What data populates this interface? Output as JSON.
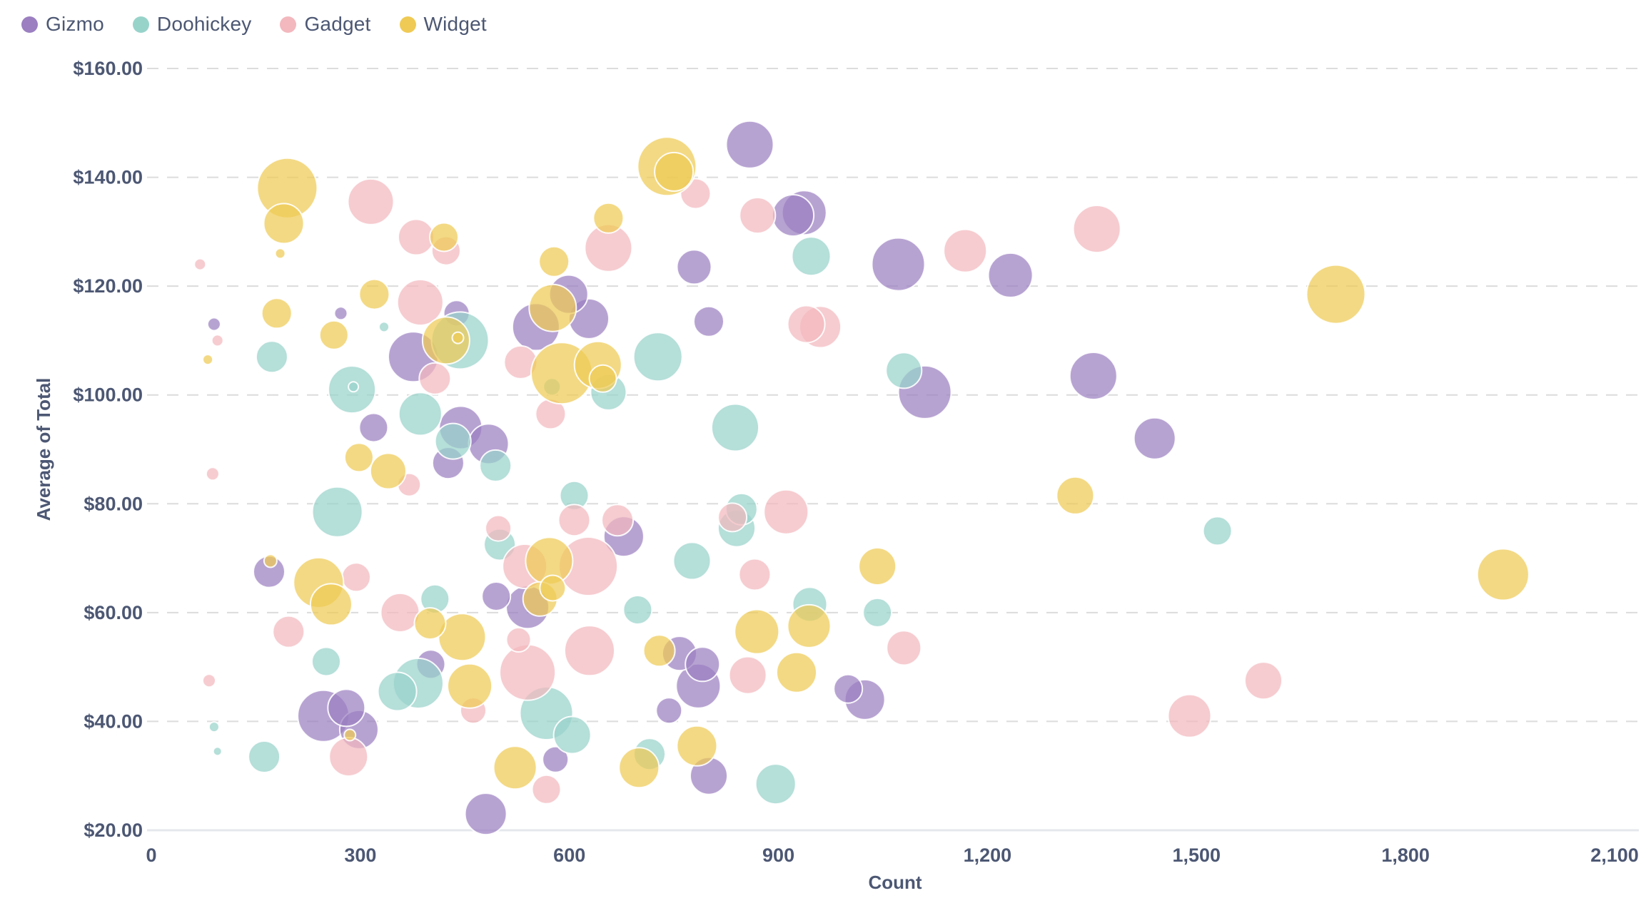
{
  "legend": {
    "items": [
      {
        "label": "Gizmo",
        "color": "#9b7fc1"
      },
      {
        "label": "Doohickey",
        "color": "#98d3ca"
      },
      {
        "label": "Gadget",
        "color": "#f2b8be"
      },
      {
        "label": "Widget",
        "color": "#efca54"
      }
    ]
  },
  "axes": {
    "x_title": "Count",
    "y_title": "Average of Total",
    "y_ticks": [
      {
        "label": "$160.00",
        "value": 160
      },
      {
        "label": "$140.00",
        "value": 140
      },
      {
        "label": "$120.00",
        "value": 120
      },
      {
        "label": "$100.00",
        "value": 100
      },
      {
        "label": "$80.00",
        "value": 80
      },
      {
        "label": "$60.00",
        "value": 60
      },
      {
        "label": "$40.00",
        "value": 40
      },
      {
        "label": "$20.00",
        "value": 20
      }
    ],
    "x_ticks": [
      {
        "label": "0",
        "value": 0
      },
      {
        "label": "300",
        "value": 300
      },
      {
        "label": "600",
        "value": 600
      },
      {
        "label": "900",
        "value": 900
      },
      {
        "label": "1,200",
        "value": 1200
      },
      {
        "label": "1,500",
        "value": 1500
      },
      {
        "label": "1,800",
        "value": 1800
      },
      {
        "label": "2,100",
        "value": 2100
      }
    ]
  },
  "colors": {
    "gridline": "#dcdcdc",
    "axis_line": "#e4e7ec",
    "text": "#4c5773",
    "background": "#ffffff"
  },
  "chart_data": {
    "type": "scatter",
    "xlabel": "Count",
    "ylabel": "Average of Total",
    "x_range": [
      0,
      2100
    ],
    "y_range": [
      20,
      160
    ],
    "grid": "horizontal-dashed",
    "legend_position": "top-left",
    "point_format": "[count, avg_total_dollars, bubble_radius_px]",
    "series": [
      {
        "name": "Gizmo",
        "color": "#9b7fc1",
        "points": [
          [
            90,
            113,
            9
          ],
          [
            272,
            115,
            9
          ],
          [
            376,
            107,
            35
          ],
          [
            438,
            115,
            18
          ],
          [
            319,
            94,
            20
          ],
          [
            444,
            94,
            30
          ],
          [
            426,
            87.5,
            22
          ],
          [
            484,
            91,
            28
          ],
          [
            169,
            67.5,
            22
          ],
          [
            247,
            41,
            36
          ],
          [
            280,
            42.5,
            26
          ],
          [
            298,
            38.5,
            27
          ],
          [
            480,
            23,
            29
          ],
          [
            859,
            146,
            33
          ],
          [
            937,
            133.5,
            31
          ],
          [
            921,
            133,
            29
          ],
          [
            1072,
            124,
            37
          ],
          [
            779,
            123.5,
            24
          ],
          [
            800,
            113.5,
            21
          ],
          [
            599,
            118.5,
            27
          ],
          [
            628,
            114,
            28
          ],
          [
            552,
            112.5,
            33
          ],
          [
            1233,
            122,
            31
          ],
          [
            1110,
            100.5,
            37
          ],
          [
            1352,
            103.5,
            33
          ],
          [
            1440,
            92,
            29
          ],
          [
            678,
            74,
            28
          ],
          [
            540,
            61,
            30
          ],
          [
            758,
            52.5,
            24
          ],
          [
            791,
            50.5,
            24
          ],
          [
            785,
            46.5,
            31
          ],
          [
            743,
            42,
            18
          ],
          [
            580,
            33,
            18
          ],
          [
            800,
            30,
            26
          ],
          [
            1000,
            46,
            20
          ],
          [
            1024,
            44,
            28
          ],
          [
            495,
            63,
            20
          ],
          [
            401,
            50.5,
            20
          ]
        ]
      },
      {
        "name": "Doohickey",
        "color": "#98d3ca",
        "points": [
          [
            334,
            112.5,
            7
          ],
          [
            173,
            107,
            22
          ],
          [
            443,
            110,
            40
          ],
          [
            288,
            101,
            33
          ],
          [
            290,
            101.5,
            7
          ],
          [
            386,
            96.5,
            30
          ],
          [
            433,
            91.5,
            25
          ],
          [
            494,
            87,
            22
          ],
          [
            267,
            78.5,
            35
          ],
          [
            251,
            51,
            20
          ],
          [
            90,
            39,
            7
          ],
          [
            95,
            34.5,
            6
          ],
          [
            162,
            33.5,
            22
          ],
          [
            575,
            101.5,
            12
          ],
          [
            656,
            100.5,
            25
          ],
          [
            727,
            107,
            34
          ],
          [
            947,
            125.5,
            27
          ],
          [
            838,
            94,
            33
          ],
          [
            1080,
            104.5,
            25
          ],
          [
            607,
            81.5,
            20
          ],
          [
            698,
            60.5,
            20
          ],
          [
            567,
            41.5,
            37
          ],
          [
            604,
            37.5,
            26
          ],
          [
            715,
            34,
            22
          ],
          [
            896,
            28.5,
            28
          ],
          [
            945,
            61.5,
            24
          ],
          [
            1042,
            60,
            20
          ],
          [
            840,
            75.5,
            26
          ],
          [
            847,
            79,
            22
          ],
          [
            776,
            69.5,
            26
          ],
          [
            1530,
            75,
            20
          ],
          [
            500,
            72.5,
            22
          ],
          [
            383,
            47,
            35
          ],
          [
            353,
            45.5,
            27
          ],
          [
            407,
            62.5,
            20
          ]
        ]
      },
      {
        "name": "Gadget",
        "color": "#f2b8be",
        "points": [
          [
            70,
            124,
            8
          ],
          [
            315,
            135.5,
            32
          ],
          [
            380,
            129,
            25
          ],
          [
            423,
            126.5,
            20
          ],
          [
            386,
            117,
            32
          ],
          [
            95,
            110,
            8
          ],
          [
            407,
            103,
            22
          ],
          [
            370,
            83.5,
            16
          ],
          [
            88,
            85.5,
            9
          ],
          [
            781,
            137,
            21
          ],
          [
            870,
            133,
            25
          ],
          [
            656,
            127,
            33
          ],
          [
            940,
            113,
            26
          ],
          [
            960,
            112.5,
            29
          ],
          [
            573,
            96.5,
            21
          ],
          [
            530,
            106,
            23
          ],
          [
            1168,
            126.5,
            30
          ],
          [
            1357,
            130.5,
            33
          ],
          [
            294,
            66.5,
            20
          ],
          [
            197,
            56.5,
            22
          ],
          [
            83,
            47.5,
            9
          ],
          [
            283,
            33.5,
            27
          ],
          [
            607,
            77,
            22
          ],
          [
            669,
            77,
            22
          ],
          [
            627,
            68.5,
            41
          ],
          [
            536,
            68.5,
            31
          ],
          [
            527,
            55,
            17
          ],
          [
            540,
            49,
            39
          ],
          [
            629,
            53,
            35
          ],
          [
            567,
            27.5,
            20
          ],
          [
            856,
            48.5,
            26
          ],
          [
            911,
            78.5,
            31
          ],
          [
            834,
            77.5,
            20
          ],
          [
            866,
            67,
            22
          ],
          [
            1080,
            53.5,
            24
          ],
          [
            1490,
            41,
            30
          ],
          [
            1596,
            47.5,
            26
          ],
          [
            357,
            60,
            27
          ],
          [
            462,
            42,
            18
          ],
          [
            498,
            75.5,
            18
          ]
        ]
      },
      {
        "name": "Widget",
        "color": "#efca54",
        "points": [
          [
            195,
            138,
            42
          ],
          [
            190,
            131.5,
            28
          ],
          [
            185,
            126,
            7
          ],
          [
            420,
            129,
            20
          ],
          [
            320,
            118.5,
            21
          ],
          [
            180,
            115,
            21
          ],
          [
            262,
            111,
            20
          ],
          [
            81,
            106.5,
            7
          ],
          [
            423,
            110,
            33
          ],
          [
            440,
            110.5,
            8
          ],
          [
            298,
            88.5,
            20
          ],
          [
            340,
            86,
            25
          ],
          [
            740,
            142,
            41
          ],
          [
            750,
            141,
            27
          ],
          [
            656,
            132.5,
            21
          ],
          [
            578,
            124.5,
            21
          ],
          [
            576,
            116,
            33
          ],
          [
            589,
            104,
            43
          ],
          [
            641,
            105.5,
            33
          ],
          [
            648,
            103,
            19
          ],
          [
            1700,
            118.5,
            41
          ],
          [
            171,
            69.5,
            9
          ],
          [
            240,
            65.5,
            35
          ],
          [
            258,
            61.5,
            29
          ],
          [
            285,
            37.5,
            8
          ],
          [
            571,
            69.5,
            33
          ],
          [
            558,
            62.5,
            24
          ],
          [
            576,
            64.5,
            18
          ],
          [
            522,
            31.5,
            30
          ],
          [
            700,
            31.5,
            28
          ],
          [
            783,
            35.5,
            28
          ],
          [
            729,
            53,
            22
          ],
          [
            869,
            56.5,
            31
          ],
          [
            944,
            57.5,
            30
          ],
          [
            926,
            49,
            28
          ],
          [
            1042,
            68.5,
            26
          ],
          [
            1326,
            81.5,
            26
          ],
          [
            1940,
            67,
            36
          ],
          [
            400,
            58,
            22
          ],
          [
            446,
            55.5,
            33
          ],
          [
            457,
            46.5,
            31
          ]
        ]
      }
    ]
  }
}
